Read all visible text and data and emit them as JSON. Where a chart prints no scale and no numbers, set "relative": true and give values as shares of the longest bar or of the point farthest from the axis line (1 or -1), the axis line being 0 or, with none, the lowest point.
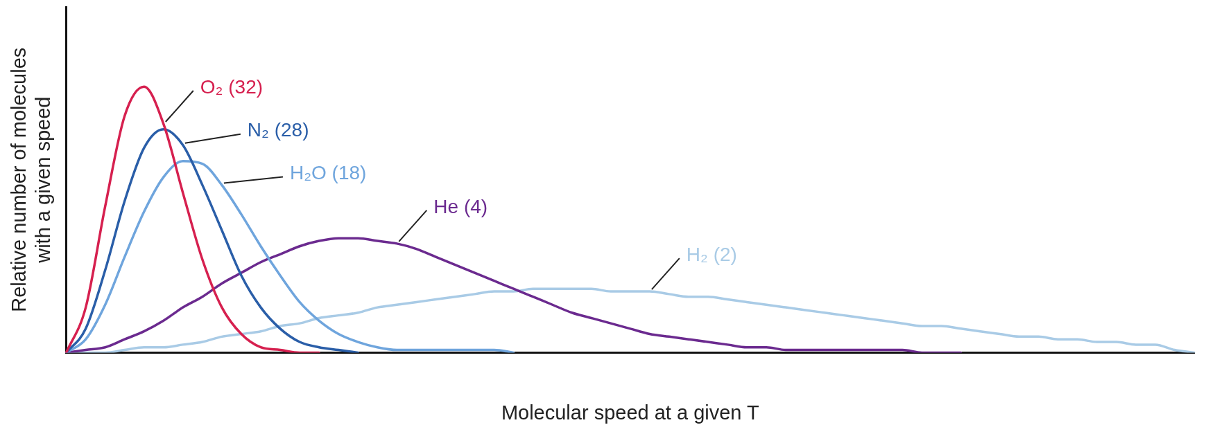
{
  "chart_data": {
    "type": "line",
    "relative": true,
    "marker": "none",
    "line_style": "solid",
    "xlabel": "Molecular speed at a given T",
    "ylabel": "Relative number of molecules\nwith a given speed",
    "categories": [
      null,
      null,
      null,
      null,
      null,
      null,
      null,
      null,
      null,
      null,
      null,
      null,
      null,
      null,
      null,
      null,
      null,
      null,
      null,
      null,
      null,
      null,
      null,
      null,
      null,
      null,
      null,
      null,
      null,
      null,
      null,
      null,
      null,
      null,
      null,
      null,
      null,
      null,
      null,
      null,
      null,
      null,
      null,
      null,
      null,
      null,
      null,
      null,
      null,
      null,
      null,
      null,
      null,
      null,
      null,
      null,
      null,
      null,
      null
    ],
    "series": [
      {
        "name": "O₂ (32)",
        "color": "#d6204f",
        "values": [
          0,
          0.17,
          0.55,
          0.89,
          1,
          0.86,
          0.6,
          0.35,
          0.17,
          0.07,
          0.02,
          0.01,
          0,
          0,
          null,
          null,
          null,
          null,
          null,
          null,
          null,
          null,
          null,
          null,
          null,
          null,
          null,
          null,
          null,
          null,
          null,
          null,
          null,
          null,
          null,
          null,
          null,
          null,
          null,
          null,
          null,
          null,
          null,
          null,
          null,
          null,
          null,
          null,
          null,
          null,
          null,
          null,
          null,
          null,
          null,
          null,
          null,
          null,
          null
        ]
      },
      {
        "name": "N₂ (28)",
        "color": "#2a5ea8",
        "values": [
          0,
          0.09,
          0.31,
          0.57,
          0.77,
          0.84,
          0.78,
          0.63,
          0.46,
          0.29,
          0.17,
          0.09,
          0.04,
          0.02,
          0.01,
          0,
          null,
          null,
          null,
          null,
          null,
          null,
          null,
          null,
          null,
          null,
          null,
          null,
          null,
          null,
          null,
          null,
          null,
          null,
          null,
          null,
          null,
          null,
          null,
          null,
          null,
          null,
          null,
          null,
          null,
          null,
          null,
          null,
          null,
          null,
          null,
          null,
          null,
          null,
          null,
          null,
          null,
          null,
          null
        ]
      },
      {
        "name": "H₂O (18)",
        "color": "#6fa5dd",
        "values": [
          0,
          0.05,
          0.18,
          0.36,
          0.53,
          0.66,
          0.72,
          0.71,
          0.63,
          0.52,
          0.4,
          0.29,
          0.19,
          0.12,
          0.07,
          0.04,
          0.02,
          0.01,
          0.01,
          0.01,
          0.01,
          0.01,
          0.01,
          0,
          null,
          null,
          null,
          null,
          null,
          null,
          null,
          null,
          null,
          null,
          null,
          null,
          null,
          null,
          null,
          null,
          null,
          null,
          null,
          null,
          null,
          null,
          null,
          null,
          null,
          null,
          null,
          null,
          null,
          null,
          null,
          null,
          null,
          null,
          null
        ]
      },
      {
        "name": "He (4)",
        "color": "#6b2a8f",
        "values": [
          0,
          0.01,
          0.02,
          0.05,
          0.08,
          0.12,
          0.17,
          0.21,
          0.26,
          0.3,
          0.34,
          0.37,
          0.4,
          0.42,
          0.43,
          0.43,
          0.42,
          0.41,
          0.39,
          0.36,
          0.33,
          0.3,
          0.27,
          0.24,
          0.21,
          0.18,
          0.15,
          0.13,
          0.11,
          0.09,
          0.07,
          0.06,
          0.05,
          0.04,
          0.03,
          0.02,
          0.02,
          0.01,
          0.01,
          0.01,
          0.01,
          0.01,
          0.01,
          0.01,
          0,
          0,
          0,
          null,
          null,
          null,
          null,
          null,
          null,
          null,
          null,
          null,
          null,
          null,
          null
        ]
      },
      {
        "name": "H₂ (2)",
        "color": "#a9cbe6",
        "values": [
          0,
          0,
          0,
          0.01,
          0.02,
          0.02,
          0.03,
          0.04,
          0.06,
          0.07,
          0.08,
          0.1,
          0.11,
          0.13,
          0.14,
          0.15,
          0.17,
          0.18,
          0.19,
          0.2,
          0.21,
          0.22,
          0.23,
          0.23,
          0.24,
          0.24,
          0.24,
          0.24,
          0.23,
          0.23,
          0.23,
          0.22,
          0.21,
          0.21,
          0.2,
          0.19,
          0.18,
          0.17,
          0.16,
          0.15,
          0.14,
          0.13,
          0.12,
          0.11,
          0.1,
          0.1,
          0.09,
          0.08,
          0.07,
          0.06,
          0.06,
          0.05,
          0.05,
          0.04,
          0.04,
          0.03,
          0.03,
          0.01,
          0
        ]
      }
    ]
  }
}
